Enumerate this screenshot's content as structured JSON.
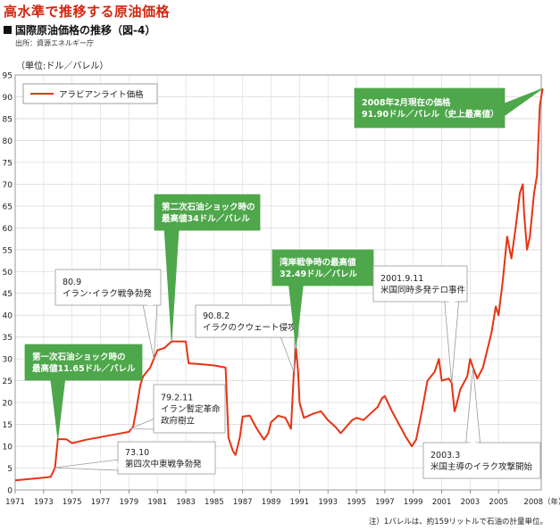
{
  "headline": "高水準で推移する原油価格",
  "figure_title": "国際原油価格の推移（図-4）",
  "source": "出所：資源エネルギー庁",
  "unit_label": "（単位:ドル／バレル）",
  "footnote": "注）1バレルは、約159リットルで石油の計量単位。",
  "colors": {
    "line": "#e63312",
    "callout_green": "#4ea74b",
    "headline": "#d4260f"
  },
  "chart_data": {
    "type": "line",
    "title": "国際原油価格の推移（図-4）",
    "ylabel": "（単位:ドル／バレル）",
    "xlabel": "",
    "ylim": [
      0,
      95
    ],
    "xlim": [
      1971,
      2008
    ],
    "yticks": [
      0,
      5,
      10,
      15,
      20,
      25,
      30,
      35,
      40,
      45,
      50,
      55,
      60,
      65,
      70,
      75,
      80,
      85,
      90,
      95
    ],
    "xticks": [
      1971,
      1973,
      1975,
      1977,
      1979,
      1981,
      1983,
      1985,
      1987,
      1989,
      1991,
      1993,
      1995,
      1997,
      1999,
      2001,
      2003,
      2005
    ],
    "xtick_last": "2008（年）",
    "grid": true,
    "legend_position": "top-left",
    "series": [
      {
        "name": "アラビアンライト価格",
        "points": [
          [
            1971.0,
            2.2
          ],
          [
            1972.0,
            2.5
          ],
          [
            1973.0,
            2.8
          ],
          [
            1973.5,
            3.0
          ],
          [
            1973.8,
            5.1
          ],
          [
            1974.0,
            11.65
          ],
          [
            1974.6,
            11.6
          ],
          [
            1975.0,
            10.7
          ],
          [
            1976.0,
            11.5
          ],
          [
            1977.0,
            12.1
          ],
          [
            1978.0,
            12.7
          ],
          [
            1979.0,
            13.3
          ],
          [
            1979.3,
            14.5
          ],
          [
            1979.5,
            18.0
          ],
          [
            1979.8,
            24.0
          ],
          [
            1980.0,
            26.0
          ],
          [
            1980.5,
            28.0
          ],
          [
            1981.0,
            32.0
          ],
          [
            1981.5,
            32.5
          ],
          [
            1982.0,
            34.0
          ],
          [
            1982.5,
            34.0
          ],
          [
            1983.0,
            34.0
          ],
          [
            1983.2,
            29.0
          ],
          [
            1984.0,
            28.8
          ],
          [
            1985.0,
            28.5
          ],
          [
            1985.8,
            28.0
          ],
          [
            1986.0,
            12.0
          ],
          [
            1986.3,
            9.0
          ],
          [
            1986.5,
            8.0
          ],
          [
            1986.8,
            12.0
          ],
          [
            1987.0,
            16.8
          ],
          [
            1987.5,
            17.0
          ],
          [
            1988.0,
            14.0
          ],
          [
            1988.5,
            11.5
          ],
          [
            1988.8,
            13.0
          ],
          [
            1989.0,
            15.5
          ],
          [
            1989.5,
            17.0
          ],
          [
            1990.0,
            16.5
          ],
          [
            1990.4,
            14.0
          ],
          [
            1990.6,
            27.0
          ],
          [
            1990.75,
            32.49
          ],
          [
            1990.9,
            27.0
          ],
          [
            1991.0,
            20.0
          ],
          [
            1991.3,
            16.5
          ],
          [
            1992.0,
            17.5
          ],
          [
            1992.5,
            18.0
          ],
          [
            1993.0,
            16.0
          ],
          [
            1993.5,
            14.5
          ],
          [
            1993.9,
            13.0
          ],
          [
            1994.3,
            14.5
          ],
          [
            1994.7,
            16.0
          ],
          [
            1995.0,
            16.5
          ],
          [
            1995.5,
            16.0
          ],
          [
            1996.0,
            17.5
          ],
          [
            1996.5,
            19.0
          ],
          [
            1996.8,
            21.0
          ],
          [
            1997.0,
            21.5
          ],
          [
            1997.5,
            18.0
          ],
          [
            1998.0,
            15.0
          ],
          [
            1998.5,
            12.0
          ],
          [
            1998.9,
            10.0
          ],
          [
            1999.2,
            11.5
          ],
          [
            1999.6,
            18.0
          ],
          [
            2000.0,
            25.0
          ],
          [
            2000.5,
            27.0
          ],
          [
            2000.8,
            30.0
          ],
          [
            2001.0,
            25.0
          ],
          [
            2001.5,
            25.5
          ],
          [
            2001.7,
            24.5
          ],
          [
            2001.9,
            18.0
          ],
          [
            2002.0,
            19.0
          ],
          [
            2002.3,
            23.0
          ],
          [
            2002.8,
            26.0
          ],
          [
            2003.0,
            30.0
          ],
          [
            2003.2,
            28.0
          ],
          [
            2003.5,
            25.5
          ],
          [
            2003.9,
            28.0
          ],
          [
            2004.2,
            32.0
          ],
          [
            2004.5,
            36.0
          ],
          [
            2004.8,
            42.0
          ],
          [
            2005.0,
            40.0
          ],
          [
            2005.3,
            48.0
          ],
          [
            2005.6,
            58.0
          ],
          [
            2005.9,
            53.0
          ],
          [
            2006.2,
            60.0
          ],
          [
            2006.5,
            68.0
          ],
          [
            2006.7,
            70.0
          ],
          [
            2006.8,
            63.0
          ],
          [
            2007.0,
            55.0
          ],
          [
            2007.2,
            58.0
          ],
          [
            2007.5,
            68.0
          ],
          [
            2007.7,
            72.0
          ],
          [
            2007.9,
            88.0
          ],
          [
            2008.1,
            91.9
          ]
        ]
      }
    ],
    "annotations": [
      {
        "id": "oil-shock-1",
        "style": "green",
        "lines": [
          "第一次石油ショック時の",
          "最高値11.65ドル／バレル"
        ],
        "x": 1974.0,
        "y": 11.65
      },
      {
        "id": "iran-iraq-war",
        "style": "white",
        "lines": [
          "80.9",
          "イラン･イラク戦争勃発"
        ],
        "x": 1980.75,
        "y": 30.0
      },
      {
        "id": "oil-shock-2",
        "style": "green",
        "lines": [
          "第二次石油ショック時の",
          "最高値34ドル／バレル"
        ],
        "x": 1982.0,
        "y": 34.0
      },
      {
        "id": "kuwait-invasion",
        "style": "white",
        "lines": [
          "90.8.2",
          "イラクのクウェート侵攻"
        ],
        "x": 1990.6,
        "y": 27.0
      },
      {
        "id": "gulf-war",
        "style": "green",
        "lines": [
          "湾岸戦争時の最高値",
          "32.49ドル／バレル"
        ],
        "x": 1990.75,
        "y": 32.49
      },
      {
        "id": "sept-11",
        "style": "white",
        "lines": [
          "2001.9.11",
          "米国同時多発テロ事件"
        ],
        "x": 2001.7,
        "y": 24.5
      },
      {
        "id": "iraq-war",
        "style": "white",
        "lines": [
          "2003.3",
          "米国主導のイラク攻撃開始"
        ],
        "x": 2003.2,
        "y": 28.0
      },
      {
        "id": "iran-revolution",
        "style": "white",
        "lines": [
          "79.2.11",
          "イラン暫定革命",
          "政府樹立"
        ],
        "x": 1979.1,
        "y": 14.0
      },
      {
        "id": "yom-kippur-war",
        "style": "white",
        "lines": [
          "73.10",
          "第四次中東戦争勃発"
        ],
        "x": 1973.8,
        "y": 5.1
      },
      {
        "id": "record-high",
        "style": "green",
        "lines": [
          "2008年2月現在の価格",
          "91.90ドル／バレル（史上最高値）"
        ],
        "x": 2008.1,
        "y": 91.9
      }
    ]
  }
}
